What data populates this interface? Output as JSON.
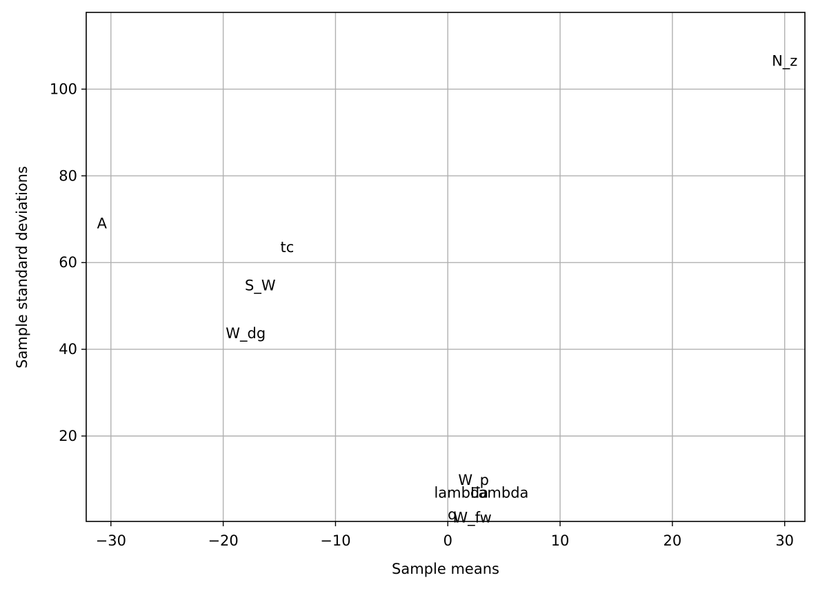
{
  "chart_data": {
    "type": "scatter",
    "title": "",
    "xlabel": "Sample means",
    "ylabel": "Sample standard deviations",
    "xlim": [
      -32.2,
      31.8
    ],
    "ylim": [
      0.3,
      117.7
    ],
    "xticks": [
      -30,
      -20,
      -10,
      0,
      10,
      20,
      30
    ],
    "xtick_labels": [
      "−30",
      "−20",
      "−10",
      "0",
      "10",
      "20",
      "30"
    ],
    "yticks": [
      20,
      40,
      60,
      80,
      100
    ],
    "ytick_labels": [
      "20",
      "40",
      "60",
      "80",
      "100"
    ],
    "grid": true,
    "points": [
      {
        "label": "N_z",
        "x": 30.0,
        "y": 106.5
      },
      {
        "label": "A",
        "x": -30.8,
        "y": 69.0
      },
      {
        "label": "tc",
        "x": -14.3,
        "y": 63.5
      },
      {
        "label": "S_W",
        "x": -16.7,
        "y": 54.7
      },
      {
        "label": "W_dg",
        "x": -18.0,
        "y": 43.7
      },
      {
        "label": "W_p",
        "x": 2.3,
        "y": 9.8
      },
      {
        "label": "lambda",
        "x": 1.2,
        "y": 6.9
      },
      {
        "label": "Lambda",
        "x": 4.6,
        "y": 6.9
      },
      {
        "label": "q",
        "x": 0.4,
        "y": 1.9
      },
      {
        "label": "W_fw",
        "x": 2.2,
        "y": 1.2
      }
    ]
  }
}
